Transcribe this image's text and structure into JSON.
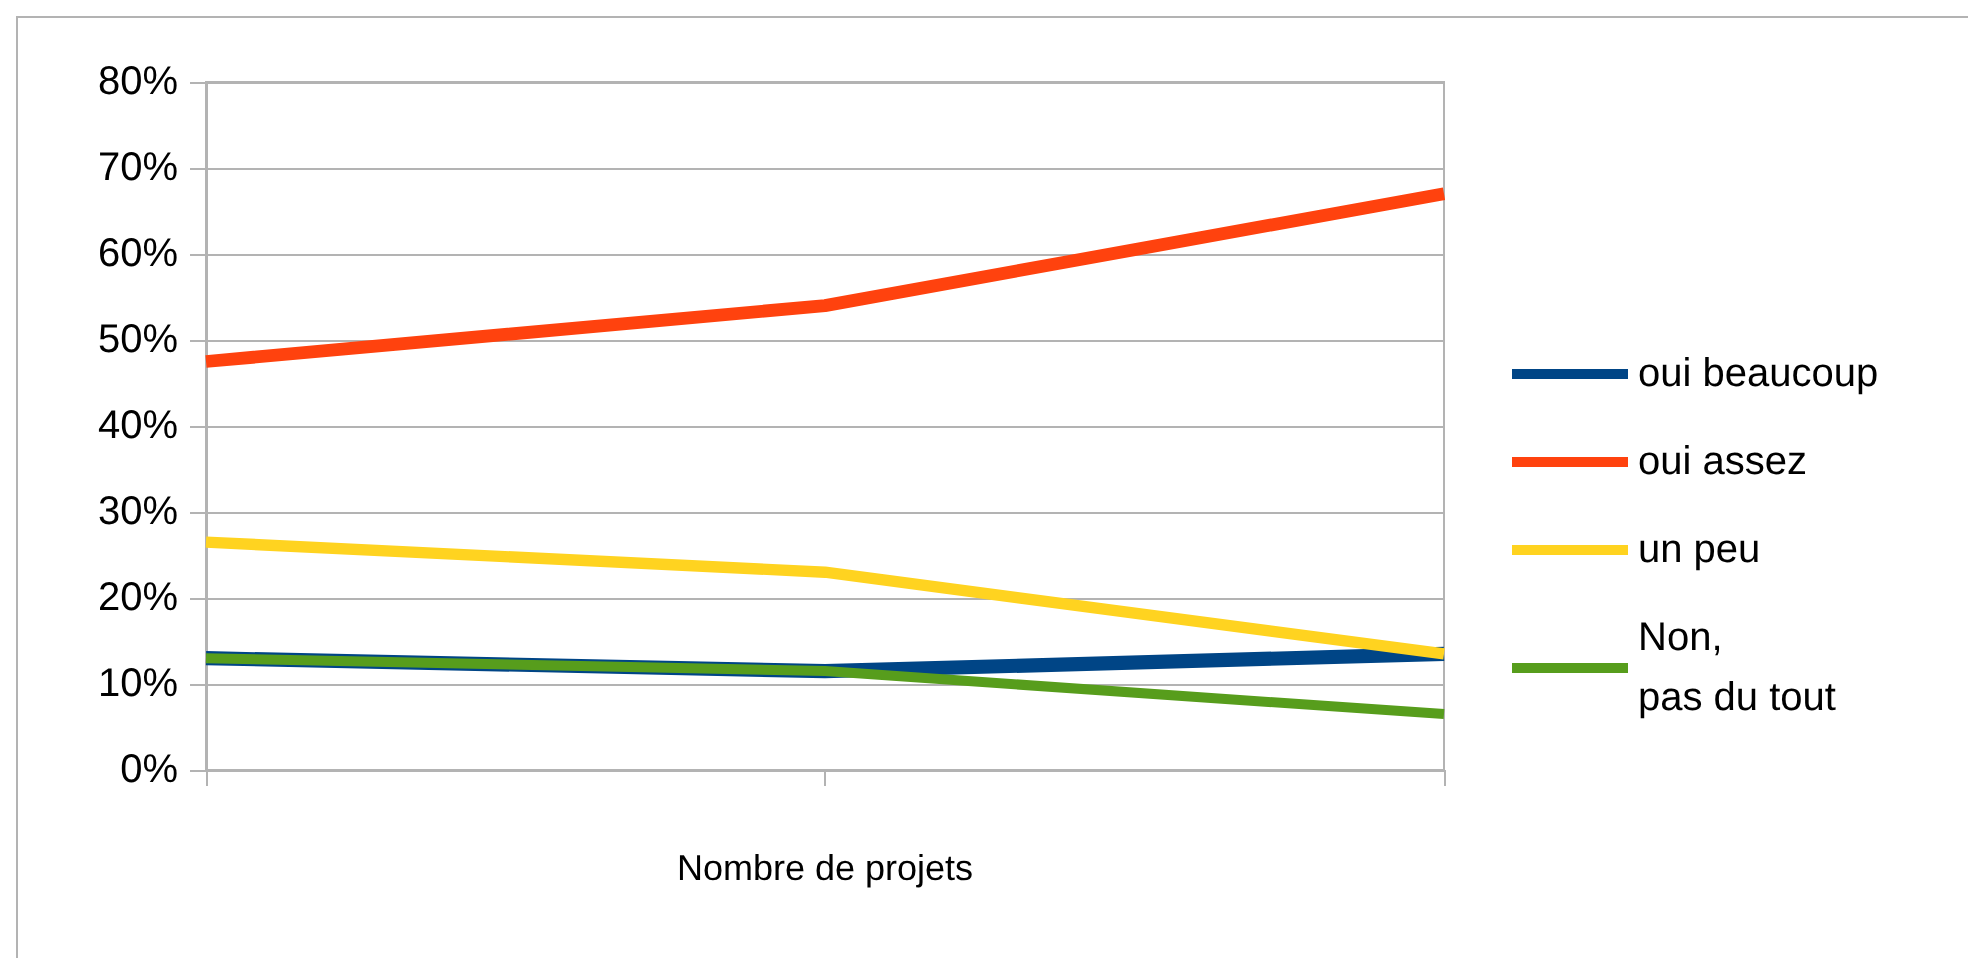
{
  "chart_data": {
    "type": "line",
    "xlabel": "Nombre de projets",
    "categories": [
      null,
      null,
      null
    ],
    "series": [
      {
        "name": "oui beaucoup",
        "color": "#004586",
        "values": [
          13,
          11.5,
          13.5
        ]
      },
      {
        "name": "oui assez",
        "color": "#ff420e",
        "values": [
          47.5,
          54,
          67
        ]
      },
      {
        "name": "un peu",
        "color": "#ffd320",
        "values": [
          26.5,
          23,
          13.5
        ]
      },
      {
        "name": "Non,\npas du tout",
        "color": "#579d1c",
        "values": [
          13,
          11.5,
          6.5
        ]
      }
    ],
    "ylim": [
      0,
      80
    ],
    "yticks": [
      {
        "value": 0,
        "label": "0%"
      },
      {
        "value": 10,
        "label": "10%"
      },
      {
        "value": 20,
        "label": "20%"
      },
      {
        "value": 30,
        "label": "30%"
      },
      {
        "value": 40,
        "label": "40%"
      },
      {
        "value": 50,
        "label": "50%"
      },
      {
        "value": 60,
        "label": "60%"
      },
      {
        "value": 70,
        "label": "70%"
      },
      {
        "value": 80,
        "label": "80%"
      }
    ],
    "grid": "y",
    "legend": "right",
    "marker": "none",
    "line_style": "solid"
  }
}
